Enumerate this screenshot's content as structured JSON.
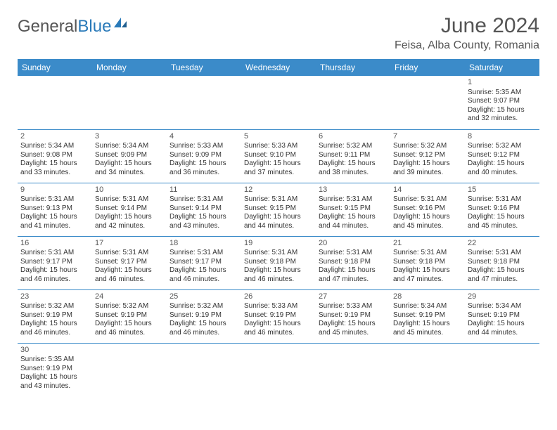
{
  "logo": {
    "text1": "General",
    "text2": "Blue"
  },
  "title": "June 2024",
  "location": "Feisa, Alba County, Romania",
  "colors": {
    "header_bg": "#3b8bc9",
    "header_fg": "#ffffff",
    "text": "#333333",
    "title": "#555555",
    "rule": "#3b8bc9",
    "logo_accent": "#2a7ab9"
  },
  "weekdays": [
    "Sunday",
    "Monday",
    "Tuesday",
    "Wednesday",
    "Thursday",
    "Friday",
    "Saturday"
  ],
  "weeks": [
    [
      null,
      null,
      null,
      null,
      null,
      null,
      {
        "n": "1",
        "sr": "Sunrise: 5:35 AM",
        "ss": "Sunset: 9:07 PM",
        "d1": "Daylight: 15 hours",
        "d2": "and 32 minutes."
      }
    ],
    [
      {
        "n": "2",
        "sr": "Sunrise: 5:34 AM",
        "ss": "Sunset: 9:08 PM",
        "d1": "Daylight: 15 hours",
        "d2": "and 33 minutes."
      },
      {
        "n": "3",
        "sr": "Sunrise: 5:34 AM",
        "ss": "Sunset: 9:09 PM",
        "d1": "Daylight: 15 hours",
        "d2": "and 34 minutes."
      },
      {
        "n": "4",
        "sr": "Sunrise: 5:33 AM",
        "ss": "Sunset: 9:09 PM",
        "d1": "Daylight: 15 hours",
        "d2": "and 36 minutes."
      },
      {
        "n": "5",
        "sr": "Sunrise: 5:33 AM",
        "ss": "Sunset: 9:10 PM",
        "d1": "Daylight: 15 hours",
        "d2": "and 37 minutes."
      },
      {
        "n": "6",
        "sr": "Sunrise: 5:32 AM",
        "ss": "Sunset: 9:11 PM",
        "d1": "Daylight: 15 hours",
        "d2": "and 38 minutes."
      },
      {
        "n": "7",
        "sr": "Sunrise: 5:32 AM",
        "ss": "Sunset: 9:12 PM",
        "d1": "Daylight: 15 hours",
        "d2": "and 39 minutes."
      },
      {
        "n": "8",
        "sr": "Sunrise: 5:32 AM",
        "ss": "Sunset: 9:12 PM",
        "d1": "Daylight: 15 hours",
        "d2": "and 40 minutes."
      }
    ],
    [
      {
        "n": "9",
        "sr": "Sunrise: 5:31 AM",
        "ss": "Sunset: 9:13 PM",
        "d1": "Daylight: 15 hours",
        "d2": "and 41 minutes."
      },
      {
        "n": "10",
        "sr": "Sunrise: 5:31 AM",
        "ss": "Sunset: 9:14 PM",
        "d1": "Daylight: 15 hours",
        "d2": "and 42 minutes."
      },
      {
        "n": "11",
        "sr": "Sunrise: 5:31 AM",
        "ss": "Sunset: 9:14 PM",
        "d1": "Daylight: 15 hours",
        "d2": "and 43 minutes."
      },
      {
        "n": "12",
        "sr": "Sunrise: 5:31 AM",
        "ss": "Sunset: 9:15 PM",
        "d1": "Daylight: 15 hours",
        "d2": "and 44 minutes."
      },
      {
        "n": "13",
        "sr": "Sunrise: 5:31 AM",
        "ss": "Sunset: 9:15 PM",
        "d1": "Daylight: 15 hours",
        "d2": "and 44 minutes."
      },
      {
        "n": "14",
        "sr": "Sunrise: 5:31 AM",
        "ss": "Sunset: 9:16 PM",
        "d1": "Daylight: 15 hours",
        "d2": "and 45 minutes."
      },
      {
        "n": "15",
        "sr": "Sunrise: 5:31 AM",
        "ss": "Sunset: 9:16 PM",
        "d1": "Daylight: 15 hours",
        "d2": "and 45 minutes."
      }
    ],
    [
      {
        "n": "16",
        "sr": "Sunrise: 5:31 AM",
        "ss": "Sunset: 9:17 PM",
        "d1": "Daylight: 15 hours",
        "d2": "and 46 minutes."
      },
      {
        "n": "17",
        "sr": "Sunrise: 5:31 AM",
        "ss": "Sunset: 9:17 PM",
        "d1": "Daylight: 15 hours",
        "d2": "and 46 minutes."
      },
      {
        "n": "18",
        "sr": "Sunrise: 5:31 AM",
        "ss": "Sunset: 9:17 PM",
        "d1": "Daylight: 15 hours",
        "d2": "and 46 minutes."
      },
      {
        "n": "19",
        "sr": "Sunrise: 5:31 AM",
        "ss": "Sunset: 9:18 PM",
        "d1": "Daylight: 15 hours",
        "d2": "and 46 minutes."
      },
      {
        "n": "20",
        "sr": "Sunrise: 5:31 AM",
        "ss": "Sunset: 9:18 PM",
        "d1": "Daylight: 15 hours",
        "d2": "and 47 minutes."
      },
      {
        "n": "21",
        "sr": "Sunrise: 5:31 AM",
        "ss": "Sunset: 9:18 PM",
        "d1": "Daylight: 15 hours",
        "d2": "and 47 minutes."
      },
      {
        "n": "22",
        "sr": "Sunrise: 5:31 AM",
        "ss": "Sunset: 9:18 PM",
        "d1": "Daylight: 15 hours",
        "d2": "and 47 minutes."
      }
    ],
    [
      {
        "n": "23",
        "sr": "Sunrise: 5:32 AM",
        "ss": "Sunset: 9:19 PM",
        "d1": "Daylight: 15 hours",
        "d2": "and 46 minutes."
      },
      {
        "n": "24",
        "sr": "Sunrise: 5:32 AM",
        "ss": "Sunset: 9:19 PM",
        "d1": "Daylight: 15 hours",
        "d2": "and 46 minutes."
      },
      {
        "n": "25",
        "sr": "Sunrise: 5:32 AM",
        "ss": "Sunset: 9:19 PM",
        "d1": "Daylight: 15 hours",
        "d2": "and 46 minutes."
      },
      {
        "n": "26",
        "sr": "Sunrise: 5:33 AM",
        "ss": "Sunset: 9:19 PM",
        "d1": "Daylight: 15 hours",
        "d2": "and 46 minutes."
      },
      {
        "n": "27",
        "sr": "Sunrise: 5:33 AM",
        "ss": "Sunset: 9:19 PM",
        "d1": "Daylight: 15 hours",
        "d2": "and 45 minutes."
      },
      {
        "n": "28",
        "sr": "Sunrise: 5:34 AM",
        "ss": "Sunset: 9:19 PM",
        "d1": "Daylight: 15 hours",
        "d2": "and 45 minutes."
      },
      {
        "n": "29",
        "sr": "Sunrise: 5:34 AM",
        "ss": "Sunset: 9:19 PM",
        "d1": "Daylight: 15 hours",
        "d2": "and 44 minutes."
      }
    ],
    [
      {
        "n": "30",
        "sr": "Sunrise: 5:35 AM",
        "ss": "Sunset: 9:19 PM",
        "d1": "Daylight: 15 hours",
        "d2": "and 43 minutes."
      },
      null,
      null,
      null,
      null,
      null,
      null
    ]
  ]
}
